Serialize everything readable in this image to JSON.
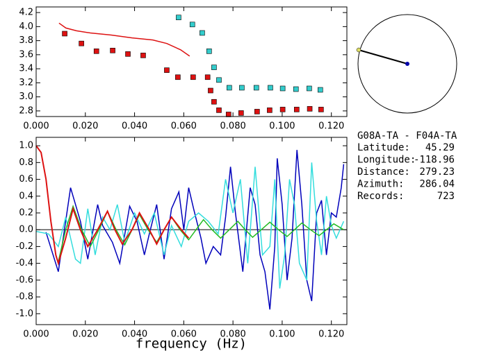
{
  "chart_data": [
    {
      "type": "scatter",
      "xlim": [
        0,
        0.1263
      ],
      "ylim": [
        2.72,
        4.28
      ],
      "xticks": [
        {
          "value": 0,
          "label": "0.000"
        },
        {
          "value": 0.02,
          "label": "0.020"
        },
        {
          "value": 0.04,
          "label": "0.040"
        },
        {
          "value": 0.06,
          "label": "0.060"
        },
        {
          "value": 0.08,
          "label": "0.080"
        },
        {
          "value": 0.1,
          "label": "0.100"
        },
        {
          "value": 0.12,
          "label": "0.120"
        }
      ],
      "yticks": [
        2.8,
        {
          "value": 3,
          "label": "3.0"
        },
        3.2,
        3.4,
        3.6,
        3.8,
        {
          "value": 4,
          "label": "4.0"
        },
        4.2
      ],
      "series": [
        {
          "color": "#dd1111",
          "marker": "square",
          "x": [
            0.0116,
            0.0184,
            0.0245,
            0.0311,
            0.0373,
            0.0435,
            0.0531,
            0.0576,
            0.0638,
            0.0697,
            0.0709,
            0.0723,
            0.0743,
            0.0782,
            0.0833,
            0.0898,
            0.0949,
            0.1002,
            0.1059,
            0.1112,
            0.1158
          ],
          "values": [
            3.9,
            3.76,
            3.65,
            3.66,
            3.61,
            3.59,
            3.38,
            3.28,
            3.28,
            3.28,
            3.09,
            2.93,
            2.81,
            2.75,
            2.77,
            2.79,
            2.81,
            2.82,
            2.82,
            2.83,
            2.82
          ]
        },
        {
          "color": "#33cccc",
          "marker": "square",
          "x": [
            0.0579,
            0.0635,
            0.0675,
            0.0703,
            0.0723,
            0.0743,
            0.0785,
            0.0836,
            0.0895,
            0.0952,
            0.1002,
            0.1056,
            0.111,
            0.1155
          ],
          "values": [
            4.13,
            4.03,
            3.91,
            3.65,
            3.42,
            3.24,
            3.13,
            3.13,
            3.13,
            3.13,
            3.12,
            3.11,
            3.12,
            3.1
          ]
        },
        {
          "color": "#dd1111",
          "marker": "none",
          "x": [
            0.0093,
            0.0121,
            0.0164,
            0.022,
            0.0305,
            0.039,
            0.0474,
            0.0531,
            0.0587,
            0.0624
          ],
          "values": [
            4.05,
            3.98,
            3.94,
            3.91,
            3.88,
            3.84,
            3.81,
            3.76,
            3.67,
            3.58
          ]
        }
      ]
    },
    {
      "type": "line",
      "x_label": "frequency (Hz)",
      "xlim": [
        0,
        0.1263
      ],
      "ylim": [
        -1.13,
        1.1
      ],
      "xticks": [
        {
          "value": 0,
          "label": "0.000"
        },
        {
          "value": 0.02,
          "label": "0.020"
        },
        {
          "value": 0.04,
          "label": "0.040"
        },
        {
          "value": 0.06,
          "label": "0.060"
        },
        {
          "value": 0.08,
          "label": "0.080"
        },
        {
          "value": 0.1,
          "label": "0.100"
        },
        {
          "value": 0.12,
          "label": "0.120"
        }
      ],
      "yticks": [
        {
          "value": -1,
          "label": "-1.0"
        },
        -0.8,
        -0.6,
        -0.4,
        -0.2,
        {
          "value": 0,
          "label": "0.0"
        },
        0.2,
        0.4,
        0.6,
        0.8,
        {
          "value": 1,
          "label": "1.0"
        }
      ],
      "zero_line": true,
      "series": [
        {
          "color": "#0000bb",
          "x": [
            0.004,
            0.009,
            0.014,
            0.018,
            0.021,
            0.025,
            0.027,
            0.031,
            0.034,
            0.038,
            0.041,
            0.044,
            0.046,
            0.049,
            0.052,
            0.055,
            0.058,
            0.06,
            0.062,
            0.064,
            0.067,
            0.069,
            0.072,
            0.075,
            0.077,
            0.079,
            0.081,
            0.084,
            0.087,
            0.089,
            0.091,
            0.093,
            0.095,
            0.097,
            0.098,
            0.1,
            0.102,
            0.104,
            0.106,
            0.108,
            0.11,
            0.112,
            0.114,
            0.116,
            0.118,
            0.12,
            0.122,
            0.124,
            0.125
          ],
          "values": [
            -0.03,
            -0.5,
            0.5,
            0.1,
            -0.35,
            0.3,
            0.05,
            -0.15,
            -0.4,
            0.28,
            0.1,
            -0.3,
            -0.05,
            0.3,
            -0.35,
            0.25,
            0.45,
            0.0,
            0.5,
            0.25,
            -0.1,
            -0.4,
            -0.2,
            -0.3,
            0.15,
            0.75,
            0.2,
            -0.5,
            0.5,
            0.3,
            -0.3,
            -0.5,
            -0.95,
            -0.2,
            0.85,
            0.3,
            -0.6,
            -0.1,
            0.95,
            0.3,
            -0.6,
            -0.85,
            0.2,
            0.35,
            -0.3,
            0.2,
            0.15,
            0.5,
            0.78
          ]
        },
        {
          "color": "#33dddd",
          "x": [
            0.0,
            0.005,
            0.009,
            0.012,
            0.016,
            0.018,
            0.021,
            0.024,
            0.027,
            0.03,
            0.033,
            0.036,
            0.04,
            0.044,
            0.048,
            0.052,
            0.055,
            0.059,
            0.062,
            0.066,
            0.07,
            0.074,
            0.077,
            0.08,
            0.083,
            0.086,
            0.089,
            0.092,
            0.095,
            0.097,
            0.099,
            0.101,
            0.103,
            0.105,
            0.107,
            0.11,
            0.112,
            0.114,
            0.116,
            0.118,
            0.12,
            0.122,
            0.125
          ],
          "values": [
            -0.02,
            -0.05,
            -0.2,
            0.15,
            -0.35,
            -0.4,
            0.25,
            -0.3,
            0.15,
            0.0,
            0.3,
            -0.15,
            0.2,
            -0.05,
            0.2,
            -0.3,
            0.05,
            -0.2,
            0.1,
            0.2,
            0.1,
            -0.05,
            0.6,
            0.2,
            0.6,
            -0.4,
            0.75,
            -0.3,
            -0.2,
            0.6,
            -0.7,
            -0.3,
            0.6,
            0.3,
            -0.4,
            -0.6,
            0.8,
            0.1,
            -0.3,
            0.4,
            0.05,
            -0.1,
            0.1
          ]
        },
        {
          "color": "#22bb22",
          "x": [
            0.009,
            0.012,
            0.015,
            0.0185,
            0.022,
            0.0255,
            0.029,
            0.0325,
            0.036,
            0.039,
            0.042,
            0.0455,
            0.049,
            0.052,
            0.055,
            0.0585,
            0.062,
            0.065,
            0.068,
            0.0715,
            0.075,
            0.0785,
            0.082,
            0.085,
            0.088,
            0.0915,
            0.095,
            0.0985,
            0.102,
            0.105,
            0.108,
            0.1115,
            0.115,
            0.118,
            0.121,
            0.125
          ],
          "values": [
            -0.38,
            0.0,
            0.28,
            0.0,
            -0.2,
            0.0,
            0.22,
            0.0,
            -0.18,
            0.0,
            0.18,
            0.0,
            -0.15,
            0.0,
            0.15,
            0.0,
            -0.12,
            0.0,
            0.12,
            0.0,
            -0.1,
            0.0,
            0.1,
            0.0,
            -0.09,
            0.0,
            0.09,
            0.0,
            -0.08,
            0.0,
            0.08,
            0.0,
            -0.07,
            0.0,
            0.07,
            0.0
          ]
        },
        {
          "color": "#dd1111",
          "x": [
            0.0,
            0.002,
            0.004,
            0.006,
            0.008,
            0.009,
            0.012,
            0.015,
            0.018,
            0.021,
            0.025,
            0.029,
            0.032,
            0.035,
            0.039,
            0.042,
            0.046,
            0.049,
            0.052,
            0.055,
            0.059,
            0.062
          ],
          "values": [
            1.0,
            0.92,
            0.6,
            0.1,
            -0.3,
            -0.4,
            -0.1,
            0.25,
            0.0,
            -0.2,
            0.0,
            0.22,
            0.0,
            -0.17,
            0.0,
            0.2,
            0.0,
            -0.17,
            0.0,
            0.15,
            0.0,
            -0.1
          ]
        }
      ]
    }
  ],
  "info": {
    "pair": "G08A-TA - F04A-TA",
    "rows": [
      {
        "label": "Latitude:",
        "value": "45.29"
      },
      {
        "label": "Longitude:",
        "value": "-118.96"
      },
      {
        "label": "Distance:",
        "value": "279.23"
      },
      {
        "label": "Azimuth:",
        "value": "286.04"
      },
      {
        "label": "Records:",
        "value": "723"
      }
    ]
  }
}
